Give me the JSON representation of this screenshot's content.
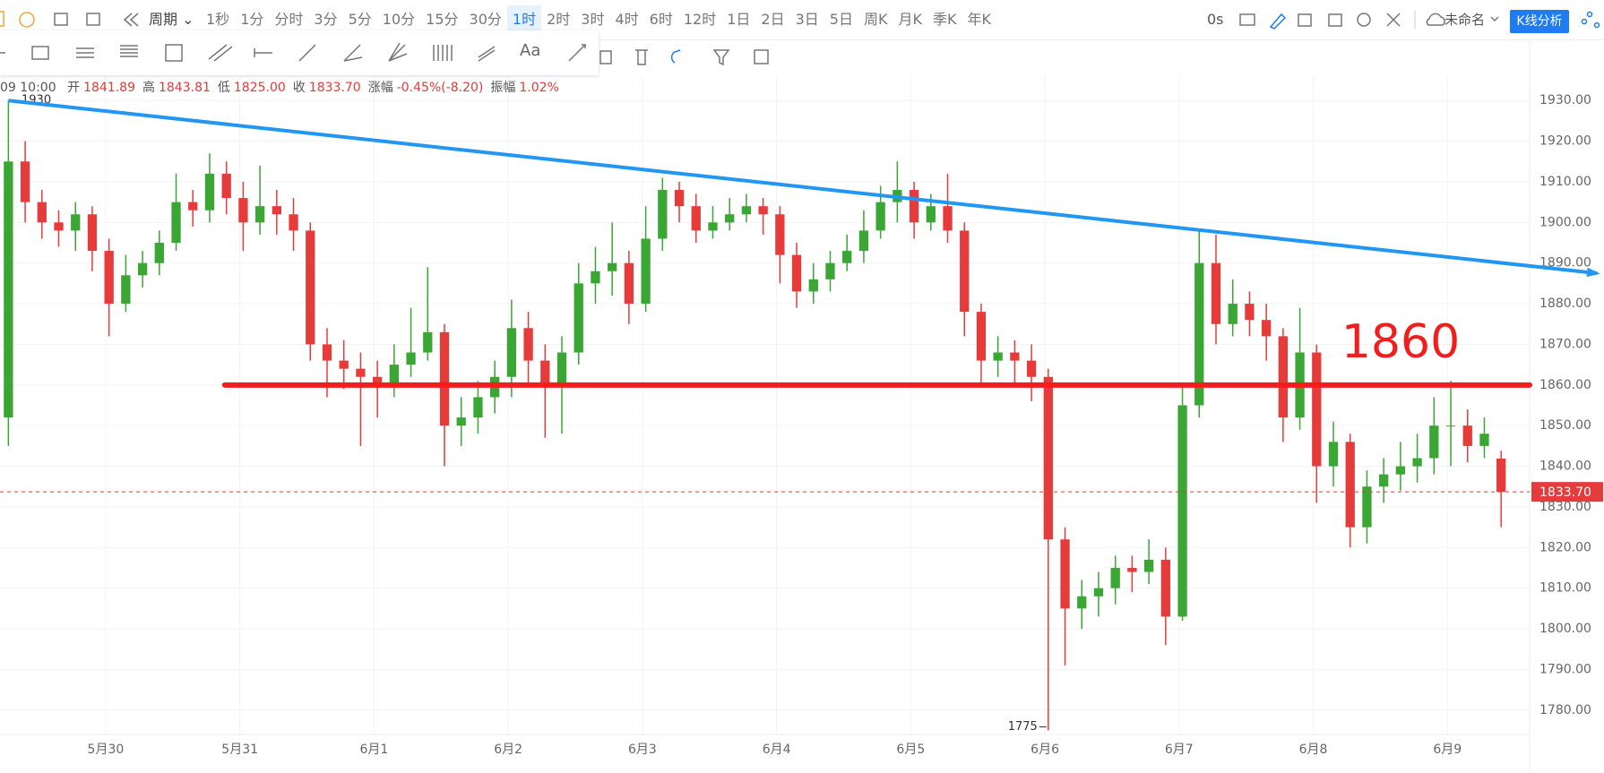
{
  "toolbar": {
    "cycle": "周期",
    "periods": [
      "1秒",
      "1分",
      "分时",
      "3分",
      "5分",
      "10分",
      "15分",
      "30分",
      "1时",
      "2时",
      "3时",
      "4时",
      "6时",
      "12时",
      "1日",
      "2日",
      "3日",
      "5日",
      "周K",
      "月K",
      "季K",
      "年K"
    ],
    "active_index": 8,
    "countdown": "0s",
    "layout_name": "未命名",
    "analysis_button": "K线分析",
    "text_tool": "Aa"
  },
  "info_bar": {
    "time": "09 10:00",
    "items": [
      {
        "label": "开",
        "value": "1841.89"
      },
      {
        "label": "高",
        "value": "1843.81"
      },
      {
        "label": "低",
        "value": "1825.00"
      },
      {
        "label": "收",
        "value": "1833.70"
      },
      {
        "label": "涨幅",
        "value": "-0.45%(-8.20)"
      },
      {
        "label": "振幅",
        "value": "1.02%"
      }
    ]
  },
  "chart_data": {
    "type": "candlestick",
    "up_color": "#3aa634",
    "down_color": "#e63b3b",
    "xlim": [
      0,
      91.2
    ],
    "ylim": [
      1774,
      1936
    ],
    "xticks": [
      {
        "value": 6.3,
        "label": "5月30"
      },
      {
        "value": 14.3,
        "label": "5月31"
      },
      {
        "value": 22.3,
        "label": "6月1"
      },
      {
        "value": 30.3,
        "label": "6月2"
      },
      {
        "value": 38.3,
        "label": "6月3"
      },
      {
        "value": 46.3,
        "label": "6月4"
      },
      {
        "value": 54.3,
        "label": "6月5"
      },
      {
        "value": 62.3,
        "label": "6月6"
      },
      {
        "value": 70.3,
        "label": "6月7"
      },
      {
        "value": 78.3,
        "label": "6月8"
      },
      {
        "value": 86.3,
        "label": "6月9"
      }
    ],
    "yticks": [
      {
        "value": 1780,
        "label": "1780.00"
      },
      {
        "value": 1790,
        "label": "1790.00"
      },
      {
        "value": 1800,
        "label": "1800.00"
      },
      {
        "value": 1810,
        "label": "1810.00"
      },
      {
        "value": 1820,
        "label": "1820.00"
      },
      {
        "value": 1830,
        "label": "1830.00"
      },
      {
        "value": 1840,
        "label": "1840.00"
      },
      {
        "value": 1850,
        "label": "1850.00"
      },
      {
        "value": 1860,
        "label": "1860.00"
      },
      {
        "value": 1870,
        "label": "1870.00"
      },
      {
        "value": 1880,
        "label": "1880.00"
      },
      {
        "value": 1890,
        "label": "1890.00"
      },
      {
        "value": 1900,
        "label": "1900.00"
      },
      {
        "value": 1910,
        "label": "1910.00"
      },
      {
        "value": 1920,
        "label": "1920.00"
      },
      {
        "value": 1930,
        "label": "1930.00"
      }
    ],
    "grid": true,
    "ohlc": [
      [
        1852,
        1930,
        1845,
        1915
      ],
      [
        1915,
        1920,
        1900,
        1905
      ],
      [
        1905,
        1908,
        1896,
        1900
      ],
      [
        1900,
        1903,
        1894,
        1898
      ],
      [
        1898,
        1905,
        1893,
        1902
      ],
      [
        1902,
        1904,
        1888,
        1893
      ],
      [
        1893,
        1896,
        1872,
        1880
      ],
      [
        1880,
        1892,
        1878,
        1887
      ],
      [
        1887,
        1893,
        1884,
        1890
      ],
      [
        1890,
        1898,
        1887,
        1895
      ],
      [
        1895,
        1912,
        1893,
        1905
      ],
      [
        1905,
        1908,
        1899,
        1903
      ],
      [
        1903,
        1917,
        1900,
        1912
      ],
      [
        1912,
        1915,
        1902,
        1906
      ],
      [
        1906,
        1910,
        1893,
        1900
      ],
      [
        1900,
        1914,
        1897,
        1904
      ],
      [
        1904,
        1908,
        1897,
        1902
      ],
      [
        1902,
        1906,
        1893,
        1898
      ],
      [
        1898,
        1900,
        1866,
        1870
      ],
      [
        1870,
        1874,
        1857,
        1866
      ],
      [
        1866,
        1871,
        1859,
        1864
      ],
      [
        1864,
        1868,
        1845,
        1862
      ],
      [
        1862,
        1866,
        1852,
        1860
      ],
      [
        1860,
        1870,
        1857,
        1865
      ],
      [
        1865,
        1879,
        1862,
        1868
      ],
      [
        1868,
        1889,
        1866,
        1873
      ],
      [
        1873,
        1875,
        1840,
        1850
      ],
      [
        1850,
        1857,
        1845,
        1852
      ],
      [
        1852,
        1861,
        1848,
        1857
      ],
      [
        1857,
        1866,
        1853,
        1862
      ],
      [
        1862,
        1881,
        1857,
        1874
      ],
      [
        1874,
        1878,
        1860,
        1866
      ],
      [
        1866,
        1870,
        1847,
        1860
      ],
      [
        1860,
        1872,
        1848,
        1868
      ],
      [
        1868,
        1890,
        1865,
        1885
      ],
      [
        1885,
        1894,
        1880,
        1888
      ],
      [
        1888,
        1900,
        1882,
        1890
      ],
      [
        1890,
        1893,
        1875,
        1880
      ],
      [
        1880,
        1904,
        1878,
        1896
      ],
      [
        1896,
        1911,
        1893,
        1908
      ],
      [
        1908,
        1910,
        1900,
        1904
      ],
      [
        1904,
        1907,
        1895,
        1898
      ],
      [
        1898,
        1904,
        1896,
        1900
      ],
      [
        1900,
        1906,
        1898,
        1902
      ],
      [
        1902,
        1907,
        1900,
        1904
      ],
      [
        1904,
        1906,
        1897,
        1902
      ],
      [
        1902,
        1904,
        1885,
        1892
      ],
      [
        1892,
        1895,
        1879,
        1883
      ],
      [
        1883,
        1890,
        1880,
        1886
      ],
      [
        1886,
        1893,
        1883,
        1890
      ],
      [
        1890,
        1897,
        1888,
        1893
      ],
      [
        1893,
        1903,
        1890,
        1898
      ],
      [
        1898,
        1909,
        1896,
        1905
      ],
      [
        1905,
        1915,
        1900,
        1908
      ],
      [
        1908,
        1910,
        1896,
        1900
      ],
      [
        1900,
        1907,
        1898,
        1904
      ],
      [
        1904,
        1912,
        1895,
        1898
      ],
      [
        1898,
        1900,
        1872,
        1878
      ],
      [
        1878,
        1880,
        1860,
        1866
      ],
      [
        1866,
        1872,
        1862,
        1868
      ],
      [
        1868,
        1871,
        1860,
        1866
      ],
      [
        1866,
        1870,
        1856,
        1862
      ],
      [
        1862,
        1864,
        1775,
        1822
      ],
      [
        1822,
        1825,
        1791,
        1805
      ],
      [
        1805,
        1812,
        1800,
        1808
      ],
      [
        1808,
        1814,
        1803,
        1810
      ],
      [
        1810,
        1818,
        1806,
        1815
      ],
      [
        1815,
        1818,
        1809,
        1814
      ],
      [
        1814,
        1822,
        1811,
        1817
      ],
      [
        1817,
        1820,
        1796,
        1803
      ],
      [
        1803,
        1860,
        1802,
        1855
      ],
      [
        1855,
        1898,
        1852,
        1890
      ],
      [
        1890,
        1897,
        1870,
        1875
      ],
      [
        1875,
        1886,
        1872,
        1880
      ],
      [
        1880,
        1883,
        1872,
        1876
      ],
      [
        1876,
        1880,
        1866,
        1872
      ],
      [
        1872,
        1874,
        1846,
        1852
      ],
      [
        1852,
        1879,
        1849,
        1868
      ],
      [
        1868,
        1870,
        1831,
        1840
      ],
      [
        1840,
        1851,
        1835,
        1846
      ],
      [
        1846,
        1848,
        1820,
        1825
      ],
      [
        1825,
        1839,
        1821,
        1835
      ],
      [
        1835,
        1842,
        1831,
        1838
      ],
      [
        1838,
        1846,
        1834,
        1840
      ],
      [
        1840,
        1848,
        1836,
        1842
      ],
      [
        1842,
        1857,
        1838,
        1850
      ],
      [
        1850,
        1861,
        1840,
        1850
      ],
      [
        1850,
        1854,
        1841,
        1845
      ],
      [
        1845,
        1852,
        1842,
        1848
      ],
      [
        1841.89,
        1843.81,
        1825,
        1833.7
      ]
    ],
    "last_price": {
      "value": 1833.7,
      "label": "1833.70",
      "color": "#e63b3b"
    },
    "trendline": {
      "color": "#2196f3",
      "points": [
        [
          0.5,
          1930
        ],
        [
          95.2,
          1887.5
        ]
      ]
    },
    "hline": {
      "value": 1860,
      "x_start": 13.4,
      "color": "#f21d1d"
    }
  }
}
